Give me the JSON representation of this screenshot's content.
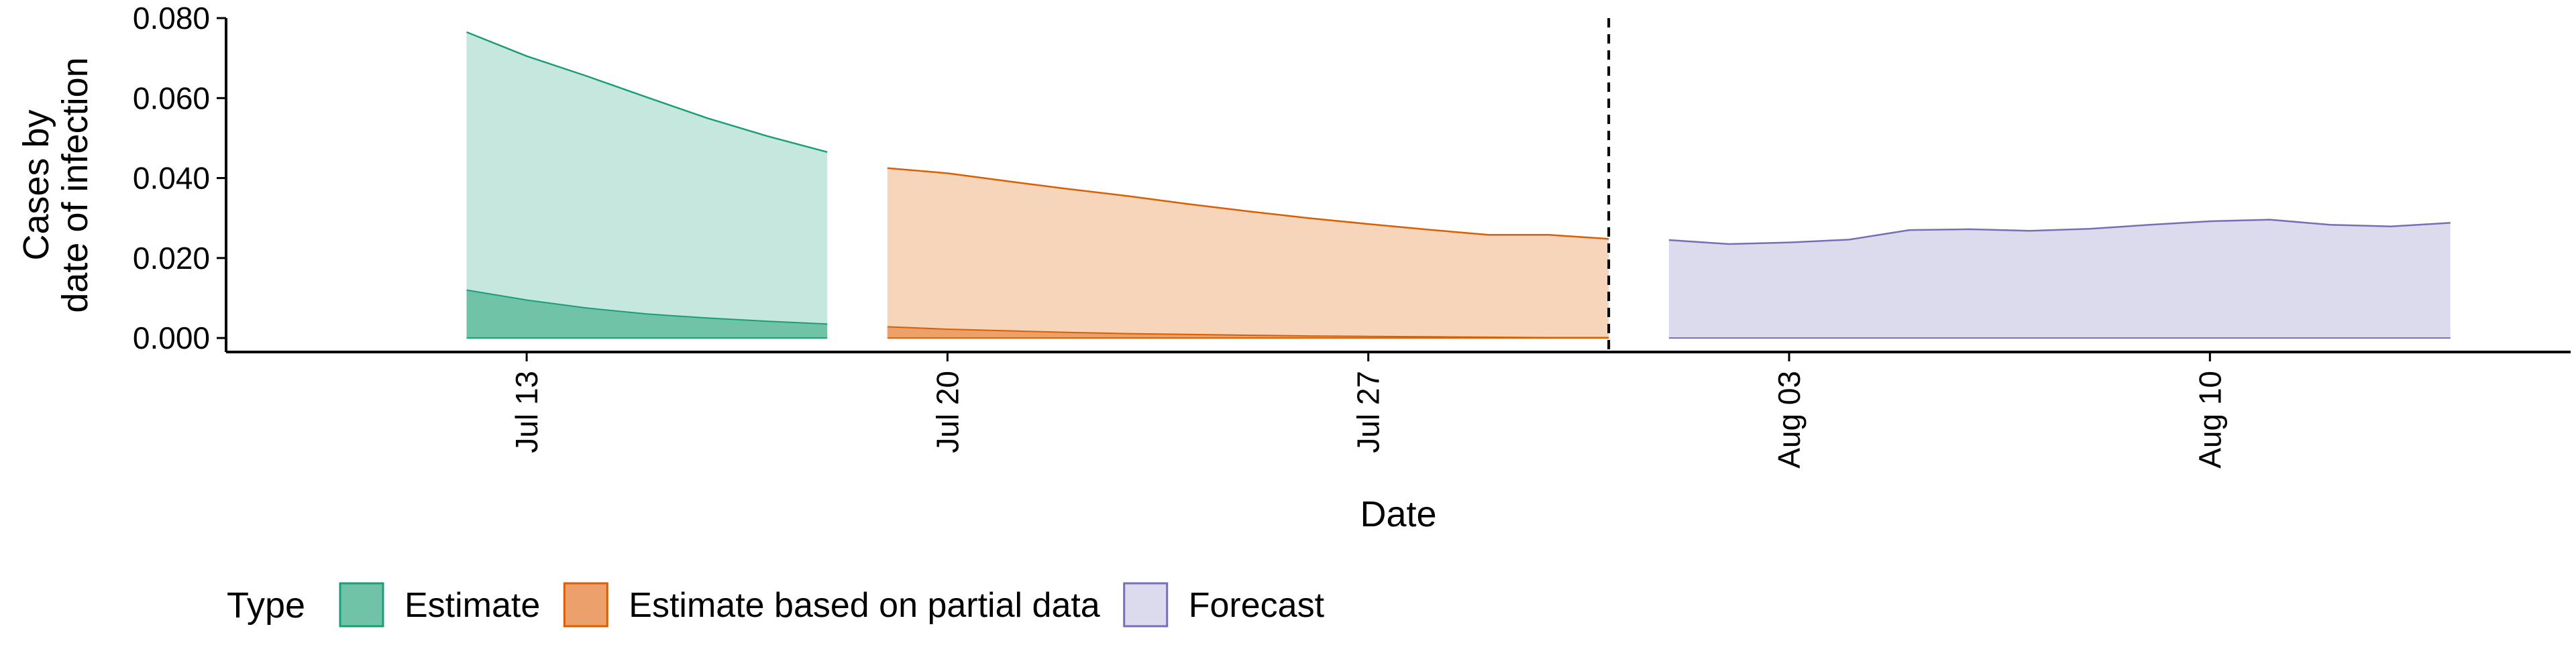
{
  "chart_data": {
    "type": "area",
    "xlabel": "Date",
    "ylabel_lines": [
      "Cases by",
      "date of infection"
    ],
    "x_ticks": [
      "Jul 13",
      "Jul 20",
      "Jul 27",
      "Aug 03",
      "Aug 10"
    ],
    "x_tick_dates": [
      "2020-07-13",
      "2020-07-20",
      "2020-07-27",
      "2020-08-03",
      "2020-08-10"
    ],
    "x_range": [
      "2020-07-08",
      "2020-08-16"
    ],
    "y_ticks": [
      "0.000",
      "0.020",
      "0.040",
      "0.060",
      "0.080"
    ],
    "y_tick_values": [
      0,
      0.02,
      0.04,
      0.06,
      0.08
    ],
    "ylim": [
      -0.0035,
      0.08
    ],
    "vline_date": "2020-07-31",
    "legend": {
      "title": "Type",
      "position": "bottom",
      "items": [
        "Estimate",
        "Estimate based on partial data",
        "Forecast"
      ]
    },
    "series": [
      {
        "name": "Estimate",
        "fill": "#c5e7dd",
        "stroke": "#1b9e77",
        "band_fill": "#71c3a8",
        "x": [
          "2020-07-12",
          "2020-07-13",
          "2020-07-14",
          "2020-07-15",
          "2020-07-16",
          "2020-07-17",
          "2020-07-18"
        ],
        "upper": [
          0.0765,
          0.0705,
          0.0655,
          0.0602,
          0.055,
          0.0505,
          0.0465
        ],
        "band_upper": [
          0.012,
          0.0095,
          0.0075,
          0.006,
          0.005,
          0.0042,
          0.0035
        ],
        "lower": [
          0,
          0,
          0,
          0,
          0,
          0,
          0
        ]
      },
      {
        "name": "Estimate based on partial data",
        "fill": "#f6d5bb",
        "stroke": "#d95f02",
        "band_fill": "#eca06b",
        "x": [
          "2020-07-19",
          "2020-07-20",
          "2020-07-21",
          "2020-07-22",
          "2020-07-23",
          "2020-07-24",
          "2020-07-25",
          "2020-07-26",
          "2020-07-27",
          "2020-07-28",
          "2020-07-29",
          "2020-07-30",
          "2020-07-31"
        ],
        "upper": [
          0.0425,
          0.0412,
          0.0392,
          0.0373,
          0.0355,
          0.0335,
          0.0317,
          0.03,
          0.0285,
          0.0271,
          0.0258,
          0.0258,
          0.0248
        ],
        "band_upper": [
          0.0028,
          0.0022,
          0.0018,
          0.0014,
          0.0011,
          0.0009,
          0.0007,
          0.0005,
          0.0004,
          0.0003,
          0.0002,
          0.0001,
          0.0001
        ],
        "lower": [
          0,
          0,
          0,
          0,
          0,
          0,
          0,
          0,
          0,
          0,
          0,
          0,
          0
        ]
      },
      {
        "name": "Forecast",
        "fill": "#dcdbed",
        "stroke": "#7570b3",
        "x": [
          "2020-08-01",
          "2020-08-02",
          "2020-08-03",
          "2020-08-04",
          "2020-08-05",
          "2020-08-06",
          "2020-08-07",
          "2020-08-08",
          "2020-08-09",
          "2020-08-10",
          "2020-08-11",
          "2020-08-12",
          "2020-08-13",
          "2020-08-14"
        ],
        "upper": [
          0.0245,
          0.0235,
          0.0239,
          0.0246,
          0.027,
          0.0272,
          0.0268,
          0.0273,
          0.0283,
          0.0292,
          0.0296,
          0.0283,
          0.0279,
          0.0288
        ],
        "lower": [
          0,
          0,
          0,
          0,
          0,
          0,
          0,
          0,
          0,
          0,
          0,
          0,
          0,
          0
        ]
      }
    ]
  }
}
